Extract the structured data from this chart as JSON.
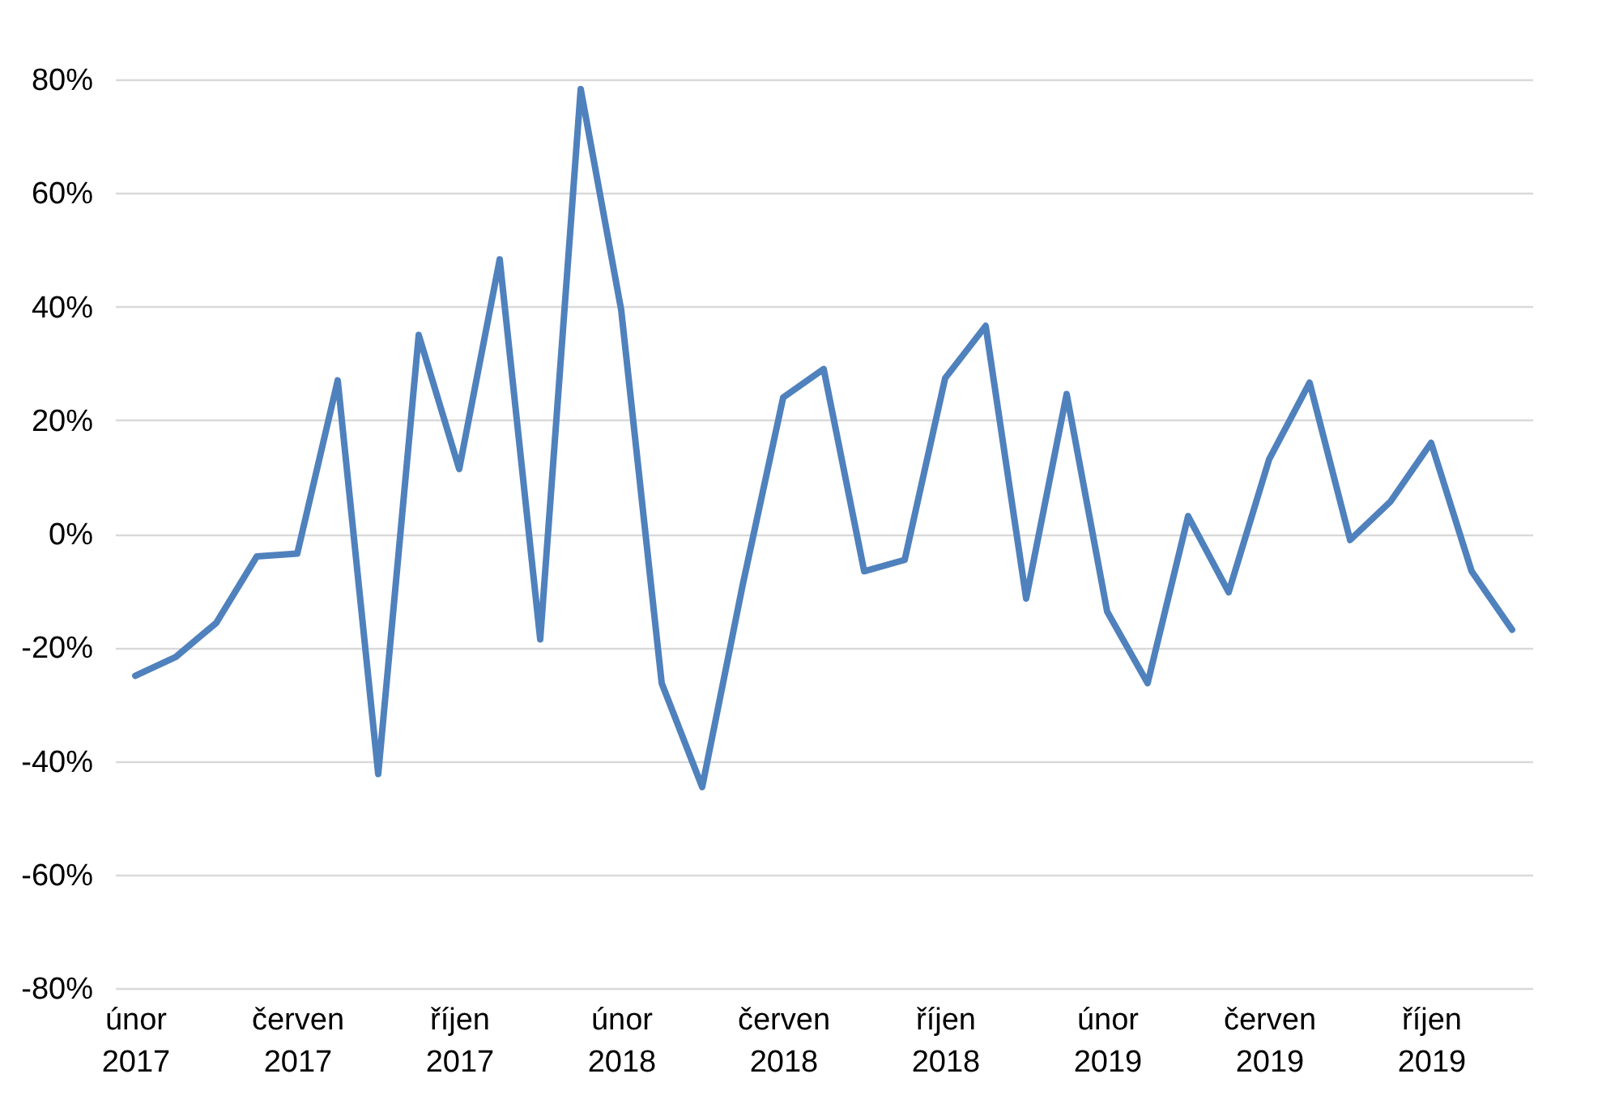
{
  "chart_data": {
    "type": "line",
    "categories": [
      "únor 2017",
      null,
      null,
      null,
      "červen 2017",
      null,
      null,
      null,
      "říjen 2017",
      null,
      null,
      null,
      "únor 2018",
      null,
      null,
      null,
      "červen 2018",
      null,
      null,
      null,
      "říjen 2018",
      null,
      null,
      null,
      "únor 2019",
      null,
      null,
      null,
      "červen 2019",
      null,
      null,
      null,
      "říjen 2019",
      null,
      null
    ],
    "series": [
      {
        "color": "#4f81bd",
        "values": [
          -25,
          -21.7,
          -15.7,
          -4,
          -3.5,
          27,
          -42.3,
          35,
          11.4,
          48.3,
          -18.6,
          78.3,
          39.4,
          -26.3,
          -44.6,
          -9,
          24,
          29,
          -6.6,
          -4.6,
          27.4,
          36.6,
          -11.4,
          24.6,
          -13.7,
          -26.3,
          3.1,
          -10.3,
          13.1,
          26.6,
          -1.1,
          5.7,
          16,
          -6.6,
          -16.9
        ]
      }
    ],
    "ylim": [
      -80,
      80
    ],
    "yticks": [
      {
        "value": -80,
        "label": "-80%"
      },
      {
        "value": -60,
        "label": "-60%"
      },
      {
        "value": -40,
        "label": "-40%"
      },
      {
        "value": -20,
        "label": "-20%"
      },
      {
        "value": 0,
        "label": "0%"
      },
      {
        "value": 20,
        "label": "20%"
      },
      {
        "value": 40,
        "label": "40%"
      },
      {
        "value": 60,
        "label": "60%"
      },
      {
        "value": 80,
        "label": "80%"
      }
    ],
    "grid": "y"
  }
}
